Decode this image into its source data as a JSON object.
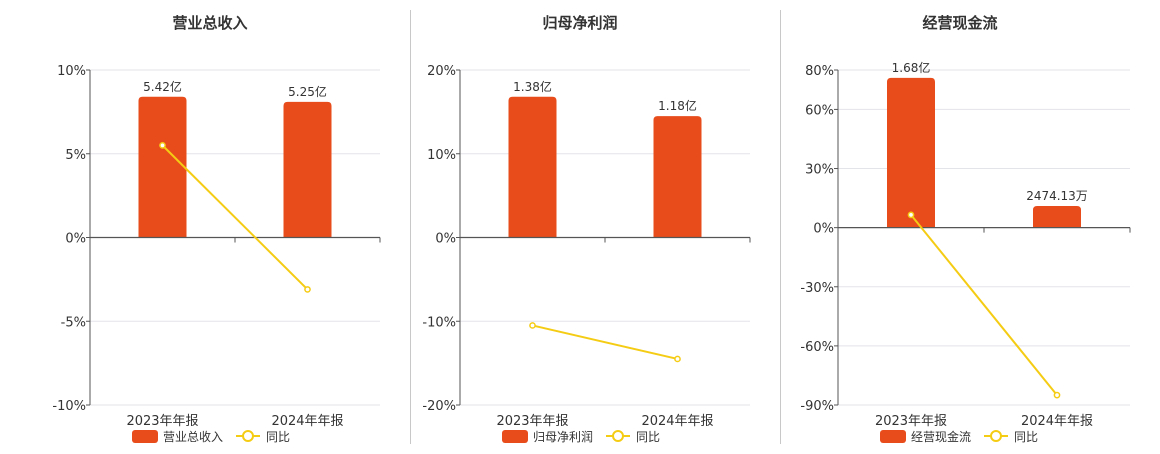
{
  "colors": {
    "bar": "#e84c1b",
    "line": "#f5cc14",
    "axis": "#555555",
    "grid": "#e3e3ea",
    "text": "#333333"
  },
  "chart_data": [
    {
      "type": "bar",
      "title": "营业总收入",
      "categories": [
        "2023年年报",
        "2024年年报"
      ],
      "y_axis": {
        "ticks": [
          10,
          5,
          0,
          -5,
          -10
        ],
        "ylim": [
          -10,
          10
        ],
        "unit": "%"
      },
      "series": [
        {
          "name": "营业总收入",
          "kind": "bar",
          "values": [
            8.4,
            8.1
          ],
          "labels": [
            "5.42亿",
            "5.25亿"
          ]
        },
        {
          "name": "同比",
          "kind": "line",
          "values": [
            5.5,
            -3.1
          ]
        }
      ],
      "legend": "bottom"
    },
    {
      "type": "bar",
      "title": "归母净利润",
      "categories": [
        "2023年年报",
        "2024年年报"
      ],
      "y_axis": {
        "ticks": [
          20,
          10,
          0,
          -10,
          -20
        ],
        "ylim": [
          -20,
          20
        ],
        "unit": "%"
      },
      "series": [
        {
          "name": "归母净利润",
          "kind": "bar",
          "values": [
            16.8,
            14.5
          ],
          "labels": [
            "1.38亿",
            "1.18亿"
          ]
        },
        {
          "name": "同比",
          "kind": "line",
          "values": [
            -10.5,
            -14.5
          ]
        }
      ],
      "legend": "bottom"
    },
    {
      "type": "bar",
      "title": "经营现金流",
      "categories": [
        "2023年年报",
        "2024年年报"
      ],
      "y_axis": {
        "ticks": [
          80,
          60,
          30,
          0,
          -30,
          -60,
          -90
        ],
        "ylim": [
          -90,
          80
        ],
        "unit": "%"
      },
      "series": [
        {
          "name": "经营现金流",
          "kind": "bar",
          "values": [
            76,
            11
          ],
          "labels": [
            "1.68亿",
            "2474.13万"
          ]
        },
        {
          "name": "同比",
          "kind": "line",
          "values": [
            6.5,
            -85
          ]
        }
      ],
      "legend": "bottom"
    }
  ]
}
